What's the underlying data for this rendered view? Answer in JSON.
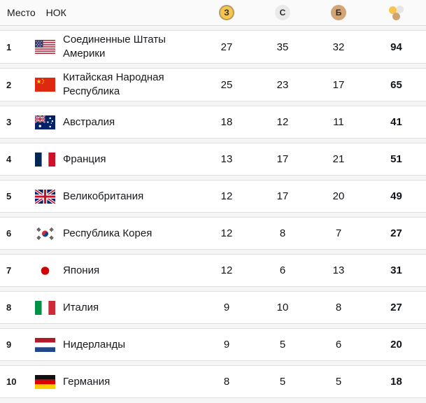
{
  "header": {
    "place_label": "Место",
    "noc_label": "НОК",
    "gold_abbr": "З",
    "silver_abbr": "С",
    "bronze_abbr": "Б"
  },
  "icons": {
    "gold": "gold-medal-icon",
    "silver": "silver-medal-icon",
    "bronze": "bronze-medal-icon",
    "total": "total-medals-icon"
  },
  "colors": {
    "gold": "#f7c54e",
    "gold_ring": "#b49c5e",
    "silver": "#e9e9e9",
    "bronze": "#d2a476",
    "row_bg": "#ffffff",
    "gap_bg": "#f5f5f6",
    "header_bg": "#fafafa",
    "border": "#e0e0e0",
    "text": "#16191d"
  },
  "table": {
    "rows": [
      {
        "rank": "1",
        "flag": "us",
        "country": "Соединенные Штаты Америки",
        "gold": "27",
        "silver": "35",
        "bronze": "32",
        "total": "94"
      },
      {
        "rank": "2",
        "flag": "cn",
        "country": "Китайская Народная Республика",
        "gold": "25",
        "silver": "23",
        "bronze": "17",
        "total": "65"
      },
      {
        "rank": "3",
        "flag": "au",
        "country": "Австралия",
        "gold": "18",
        "silver": "12",
        "bronze": "11",
        "total": "41"
      },
      {
        "rank": "4",
        "flag": "fr",
        "country": "Франция",
        "gold": "13",
        "silver": "17",
        "bronze": "21",
        "total": "51"
      },
      {
        "rank": "5",
        "flag": "gb",
        "country": "Великобритания",
        "gold": "12",
        "silver": "17",
        "bronze": "20",
        "total": "49"
      },
      {
        "rank": "6",
        "flag": "kr",
        "country": "Республика Корея",
        "gold": "12",
        "silver": "8",
        "bronze": "7",
        "total": "27"
      },
      {
        "rank": "7",
        "flag": "jp",
        "country": "Япония",
        "gold": "12",
        "silver": "6",
        "bronze": "13",
        "total": "31"
      },
      {
        "rank": "8",
        "flag": "it",
        "country": "Италия",
        "gold": "9",
        "silver": "10",
        "bronze": "8",
        "total": "27"
      },
      {
        "rank": "9",
        "flag": "nl",
        "country": "Нидерланды",
        "gold": "9",
        "silver": "5",
        "bronze": "6",
        "total": "20"
      },
      {
        "rank": "10",
        "flag": "de",
        "country": "Германия",
        "gold": "8",
        "silver": "5",
        "bronze": "5",
        "total": "18"
      }
    ]
  }
}
